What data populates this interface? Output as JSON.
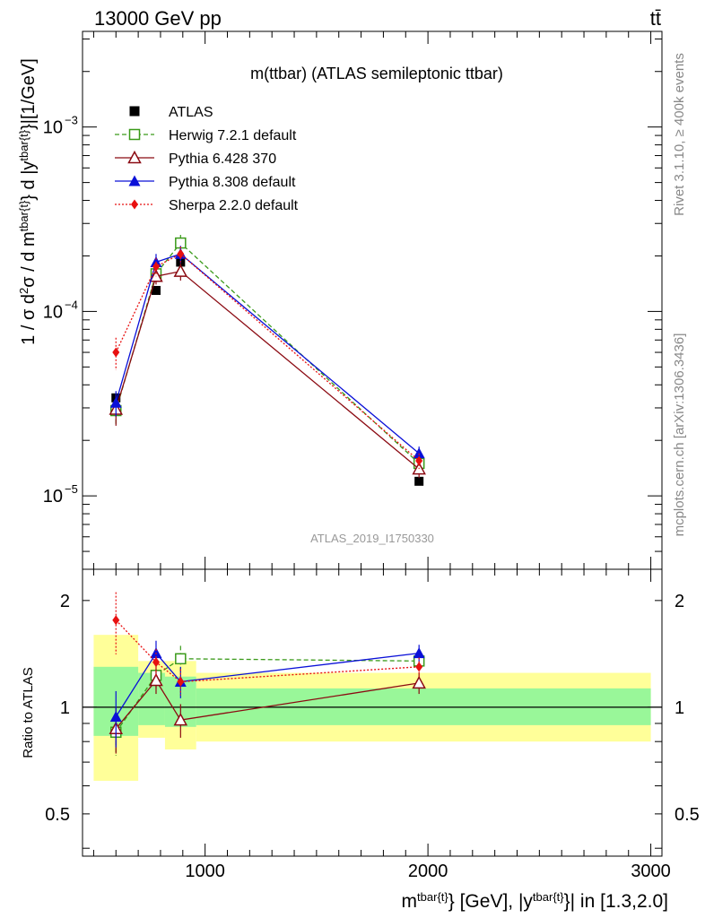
{
  "header": {
    "left": "13000 GeV pp",
    "right": "tt̄"
  },
  "main_title": "m(ttbar) (ATLAS semileptonic ttbar)",
  "analysis_id": "ATLAS_2019_I1750330",
  "side_text": {
    "rivet": "Rivet 3.1.10, ≥ 400k events",
    "mcplots": "mcplots.cern.ch [arXiv:1306.3436]"
  },
  "axis_text": {
    "xlabel": "m^{tbar{t}} [GeV], |y^{tbar{t}}| in [1.3,2.0]",
    "ylabel_top": "1 / σ d²σ / d m^{tbar{t}} d |y^{tbar{t}}|[1/GeV]",
    "ylabel_ratio": "Ratio to ATLAS"
  },
  "colors": {
    "ATLAS": "#000000",
    "Herwig": "#3a9a1a",
    "Pythia6": "#8b0a12",
    "Pythia8": "#0a10d8",
    "Sherpa": "#e81010",
    "band_inner": "#99f799",
    "band_outer": "#ffff99"
  },
  "chart_data": [
    {
      "type": "scatter",
      "log_y": true,
      "xlim": [
        450,
        3050
      ],
      "ylim": [
        4e-06,
        0.0033
      ],
      "x_ticks": [
        1000,
        2000,
        3000
      ],
      "y_tick_labels": [
        "10^{-5}",
        "10^{-4}",
        "10^{-3}"
      ],
      "legend_position": "top-left",
      "series": [
        {
          "name": "ATLAS",
          "marker": "square-filled",
          "x": [
            600,
            780,
            890,
            1960
          ],
          "y": [
            3.4e-05,
            0.00013,
            0.000185,
            1.2e-05
          ]
        },
        {
          "name": "Herwig 7.2.1 default",
          "marker": "square-open",
          "line": "dashed",
          "x": [
            600,
            780,
            890,
            1960
          ],
          "y": [
            2.9e-05,
            0.00016,
            0.000235,
            1.5e-05
          ],
          "err": [
            5e-06,
            1.5e-05,
            2.5e-05,
            1.5e-06
          ]
        },
        {
          "name": "Pythia 6.428 370",
          "marker": "triangle-open",
          "line": "solid",
          "x": [
            600,
            780,
            890,
            1960
          ],
          "y": [
            2.95e-05,
            0.000155,
            0.000165,
            1.4e-05
          ],
          "err": [
            5.5e-06,
            1.5e-05,
            1.8e-05,
            1.5e-06
          ]
        },
        {
          "name": "Pythia 8.308 default",
          "marker": "triangle-filled",
          "line": "solid",
          "x": [
            600,
            780,
            890,
            1960
          ],
          "y": [
            3.2e-05,
            0.000185,
            0.000205,
            1.7e-05
          ],
          "err": [
            5e-06,
            2e-05,
            2.2e-05,
            1.5e-06
          ]
        },
        {
          "name": "Sherpa 2.2.0 default",
          "marker": "diamond-filled",
          "line": "dotted",
          "x": [
            600,
            780,
            890,
            1960
          ],
          "y": [
            6e-05,
            0.000175,
            0.000205,
            1.55e-05
          ],
          "err": [
            1.2e-05,
            2e-05,
            2e-05,
            1.5e-06
          ]
        }
      ]
    },
    {
      "type": "scatter",
      "log_y": true,
      "xlim": [
        450,
        3050
      ],
      "ylim": [
        0.38,
        2.45
      ],
      "x_ticks": [
        1000,
        2000,
        3000
      ],
      "y_ticks": [
        0.5,
        1,
        2
      ],
      "reference_line": 1,
      "bands": [
        {
          "x0": 500,
          "x1": 700,
          "inner": [
            0.83,
            1.3
          ],
          "outer": [
            0.62,
            1.6
          ]
        },
        {
          "x0": 700,
          "x1": 820,
          "inner": [
            0.89,
            1.25
          ],
          "outer": [
            0.82,
            1.35
          ]
        },
        {
          "x0": 820,
          "x1": 960,
          "inner": [
            0.88,
            1.22
          ],
          "outer": [
            0.76,
            1.35
          ]
        },
        {
          "x0": 960,
          "x1": 3000,
          "inner": [
            0.89,
            1.13
          ],
          "outer": [
            0.8,
            1.25
          ]
        }
      ],
      "series": [
        {
          "name": "Herwig 7.2.1 default",
          "x": [
            600,
            780,
            890,
            1960
          ],
          "y": [
            0.85,
            1.23,
            1.37,
            1.35
          ],
          "err": [
            0.12,
            0.1,
            0.12,
            0.08
          ]
        },
        {
          "name": "Pythia 6.428 370",
          "x": [
            600,
            780,
            890,
            1960
          ],
          "y": [
            0.87,
            1.19,
            0.92,
            1.17
          ],
          "err": [
            0.13,
            0.1,
            0.1,
            0.08
          ]
        },
        {
          "name": "Pythia 8.308 default",
          "x": [
            600,
            780,
            890,
            1960
          ],
          "y": [
            0.94,
            1.42,
            1.18,
            1.42
          ],
          "err": [
            0.17,
            0.12,
            0.12,
            0.08
          ]
        },
        {
          "name": "Sherpa 2.2.0 default",
          "x": [
            600,
            780,
            890,
            1960
          ],
          "y": [
            1.76,
            1.34,
            1.18,
            1.3
          ],
          "err": [
            0.35,
            0.12,
            0.1,
            0.08
          ]
        }
      ]
    }
  ]
}
